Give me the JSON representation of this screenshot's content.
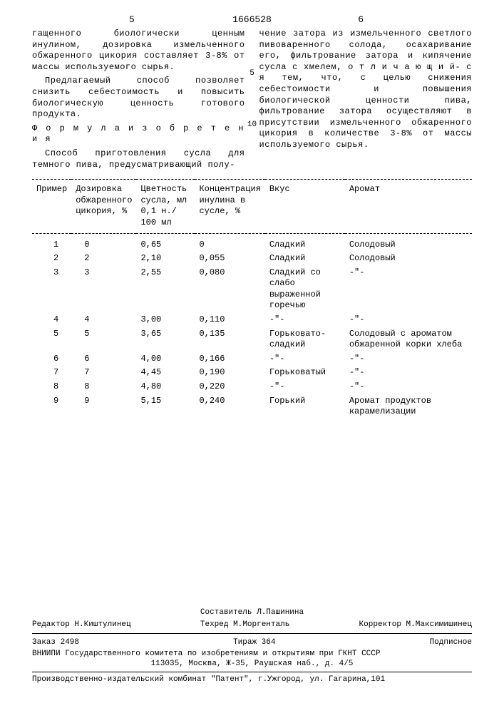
{
  "docNumber": "1666528",
  "pageLeft": "5",
  "pageRight": "6",
  "marginNums": {
    "five": "5",
    "ten": "10"
  },
  "leftCol": {
    "p1": "гащенного биологически ценным инулином, дозировка измельченного обжаренного цикория составляет 3-8% от массы используемого сырья.",
    "p2": "Предлагаемый способ позволяет снизить себестоимость и повысить биологическую ценность готового продукта.",
    "formula": "Ф о р м у л а  и з о б р е т е н и я",
    "p3": "Способ приготовления сусла для темного пива, предусматривающий полу-"
  },
  "rightCol": {
    "p1": "чение затора из измельченного светлого пивоваренного солода, осахаривание его, фильтрование затора и кипячение сусла с хмелем, о т л и ч а ю щ и й- с я  тем, что, с целью снижения себестоимости и повышения биологической ценности пива, фильтрование затора осуществляют в присутствии измельченного обжаренного цикория в количестве 3-8% от массы используемого сырья."
  },
  "table": {
    "headers": {
      "c1": "Пример",
      "c2": "Дозировка обжаренного цикория, %",
      "c3": "Цветность сусла, мл 0,1 н./ 100 мл",
      "c4": "Концентрация инулина в сусле, %",
      "c5": "Вкус",
      "c6": "Аромат"
    },
    "rows": [
      {
        "n": "1",
        "d": "0",
        "c": "0,65",
        "i": "0",
        "v": "Сладкий",
        "a": "Солодовый"
      },
      {
        "n": "2",
        "d": "2",
        "c": "2,10",
        "i": "0,055",
        "v": "Сладкий",
        "a": "Солодовый"
      },
      {
        "n": "3",
        "d": "3",
        "c": "2,55",
        "i": "0,080",
        "v": "Сладкий со слабо выраженной горечью",
        "a": "-\"-"
      },
      {
        "n": "4",
        "d": "4",
        "c": "3,00",
        "i": "0,110",
        "v": "-\"-",
        "a": "-\"-"
      },
      {
        "n": "5",
        "d": "5",
        "c": "3,65",
        "i": "0,135",
        "v": "Горьковато-сладкий",
        "a": "Солодовый с ароматом обжаренной корки хлеба"
      },
      {
        "n": "6",
        "d": "6",
        "c": "4,00",
        "i": "0,166",
        "v": "-\"-",
        "a": "-\"-"
      },
      {
        "n": "7",
        "d": "7",
        "c": "4,45",
        "i": "0,190",
        "v": "Горьковатый",
        "a": "-\"-"
      },
      {
        "n": "8",
        "d": "8",
        "c": "4,80",
        "i": "0,220",
        "v": "-\"-",
        "a": "-\"-"
      },
      {
        "n": "9",
        "d": "9",
        "c": "5,15",
        "i": "0,240",
        "v": "Горький",
        "a": "Аромат продуктов карамелизации"
      }
    ]
  },
  "footer": {
    "compiler": "Составитель Л.Пашинина",
    "editor": "Редактор Н.Киштулинец",
    "techred": "Техред М.Моргенталь",
    "corrector": "Корректор М.Максимишинец",
    "order": "Заказ 2498",
    "tirage": "Тираж 364",
    "subscriber": "Подписное",
    "org": "ВНИИПИ Государственного комитета по изобретениям и открытиям при ГКНТ СССР",
    "address": "113035, Москва, Ж-35, Раушская наб., д. 4/5",
    "printer": "Производственно-издательский комбинат \"Патент\", г.Ужгород, ул. Гагарина,101"
  }
}
